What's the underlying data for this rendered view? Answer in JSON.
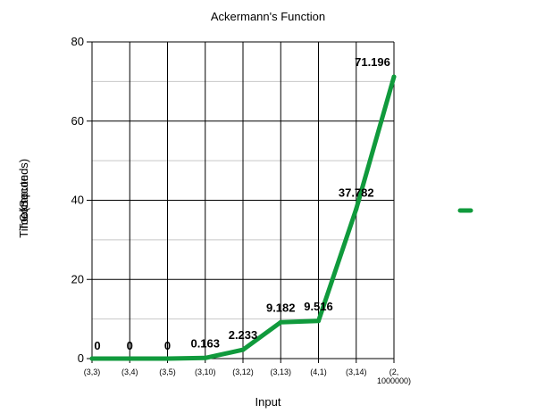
{
  "chart_data": {
    "type": "line",
    "title": "Ackermann's Function",
    "xlabel": "Input",
    "ylabel": [
      "Time",
      "Took to",
      "Compute",
      "(Seconds)"
    ],
    "categories": [
      [
        "(3,3)"
      ],
      [
        "(3,4)"
      ],
      [
        "(3,5)"
      ],
      [
        "(3,10)"
      ],
      [
        "(3,12)"
      ],
      [
        "(3,13)"
      ],
      [
        "(4,1)"
      ],
      [
        "(3,14)"
      ],
      [
        "(2,",
        "1000000)"
      ]
    ],
    "series": [
      {
        "values": [
          0,
          0,
          0,
          0.163,
          2.233,
          9.182,
          9.516,
          37.782,
          71.196
        ],
        "labels": [
          "0",
          "0",
          "0",
          "0.163",
          "2.233",
          "9.182",
          "9.516",
          "37.782",
          "71.196"
        ],
        "color": "#109a3c"
      }
    ],
    "ylim": [
      0,
      80
    ],
    "yticks": [
      0,
      20,
      40,
      60,
      80
    ],
    "minor_grid": [
      10,
      30,
      50,
      70
    ],
    "grid": true,
    "legend": "right"
  }
}
